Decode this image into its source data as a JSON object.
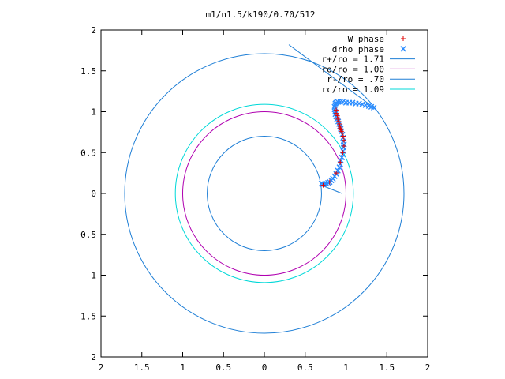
{
  "chart_data": {
    "type": "scatter",
    "title": "m1/n1.5/k190/0.70/512",
    "xlabel": "",
    "ylabel": "",
    "xlim": [
      -2,
      2
    ],
    "ylim": [
      -2,
      2
    ],
    "x_tick_values": [
      -2,
      -1.5,
      -1,
      -0.5,
      0,
      0.5,
      1,
      1.5,
      2
    ],
    "x_tick_labels": [
      "2",
      "1.5",
      "1",
      "0.5",
      "0",
      "0.5",
      "1",
      "1.5",
      "2"
    ],
    "y_tick_values": [
      2,
      1.5,
      1,
      0.5,
      0,
      -0.5,
      -1,
      -1.5,
      -2
    ],
    "y_tick_labels": [
      "2",
      "1.5",
      "1",
      "0.5",
      "0",
      "0.5",
      "1",
      "1.5",
      "2"
    ],
    "grid": false,
    "legend_position": "top-right",
    "circles": [
      {
        "name": "r+/ro = 1.71",
        "radius": 1.71,
        "color": "#1f7fd6"
      },
      {
        "name": "ro/ro = 1.00",
        "radius": 1.0,
        "color": "#b000b0"
      },
      {
        "name": "r-/ro = .70",
        "radius": 0.7,
        "color": "#1f7fd6"
      },
      {
        "name": "rc/ro = 1.09",
        "radius": 1.09,
        "color": "#00d8d8"
      }
    ],
    "series": [
      {
        "name": "W phase",
        "marker": "+",
        "color": "#e00000",
        "points": [
          [
            0.72,
            0.1
          ],
          [
            0.8,
            0.14
          ],
          [
            0.88,
            0.25
          ],
          [
            0.93,
            0.38
          ],
          [
            0.96,
            0.5
          ],
          [
            0.975,
            0.58
          ],
          [
            0.975,
            0.65
          ],
          [
            0.965,
            0.7
          ],
          [
            0.955,
            0.74
          ],
          [
            0.945,
            0.76
          ],
          [
            0.935,
            0.78
          ],
          [
            0.93,
            0.8
          ],
          [
            0.925,
            0.82
          ],
          [
            0.918,
            0.85
          ],
          [
            0.91,
            0.88
          ],
          [
            0.9,
            0.91
          ],
          [
            0.895,
            0.95
          ],
          [
            0.88,
            0.98
          ],
          [
            0.88,
            1.02
          ]
        ]
      },
      {
        "name": "drho phase",
        "marker": "x",
        "color": "#2a8cff",
        "points": [
          [
            0.7,
            0.12
          ],
          [
            0.72,
            0.11
          ],
          [
            0.74,
            0.115
          ],
          [
            0.76,
            0.12
          ],
          [
            0.78,
            0.13
          ],
          [
            0.8,
            0.14
          ],
          [
            0.82,
            0.16
          ],
          [
            0.84,
            0.18
          ],
          [
            0.86,
            0.21
          ],
          [
            0.88,
            0.24
          ],
          [
            0.9,
            0.28
          ],
          [
            0.92,
            0.32
          ],
          [
            0.93,
            0.36
          ],
          [
            0.94,
            0.4
          ],
          [
            0.95,
            0.44
          ],
          [
            0.96,
            0.48
          ],
          [
            0.965,
            0.52
          ],
          [
            0.97,
            0.56
          ],
          [
            0.975,
            0.6
          ],
          [
            0.97,
            0.64
          ],
          [
            0.965,
            0.68
          ],
          [
            0.955,
            0.72
          ],
          [
            0.945,
            0.76
          ],
          [
            0.935,
            0.79
          ],
          [
            0.925,
            0.82
          ],
          [
            0.915,
            0.85
          ],
          [
            0.905,
            0.88
          ],
          [
            0.89,
            0.91
          ],
          [
            0.88,
            0.94
          ],
          [
            0.87,
            0.97
          ],
          [
            0.865,
            1.0
          ],
          [
            0.86,
            1.03
          ],
          [
            0.86,
            1.06
          ],
          [
            0.865,
            1.08
          ],
          [
            0.87,
            1.1
          ],
          [
            0.88,
            1.11
          ],
          [
            0.9,
            1.12
          ],
          [
            0.93,
            1.12
          ],
          [
            0.96,
            1.12
          ],
          [
            1.0,
            1.11
          ],
          [
            1.04,
            1.11
          ],
          [
            1.08,
            1.11
          ],
          [
            1.12,
            1.1
          ],
          [
            1.16,
            1.1
          ],
          [
            1.2,
            1.09
          ],
          [
            1.24,
            1.08
          ],
          [
            1.28,
            1.07
          ],
          [
            1.31,
            1.06
          ],
          [
            1.34,
            1.05
          ]
        ]
      }
    ],
    "annotations": [
      {
        "type": "line",
        "points": [
          [
            0.3,
            1.82
          ],
          [
            1.3,
            1.08
          ]
        ],
        "color": "#1f7fd6"
      },
      {
        "type": "line",
        "points": [
          [
            0.7,
            0.1
          ],
          [
            0.95,
            0.0
          ]
        ],
        "color": "#1f7fd6"
      }
    ]
  }
}
